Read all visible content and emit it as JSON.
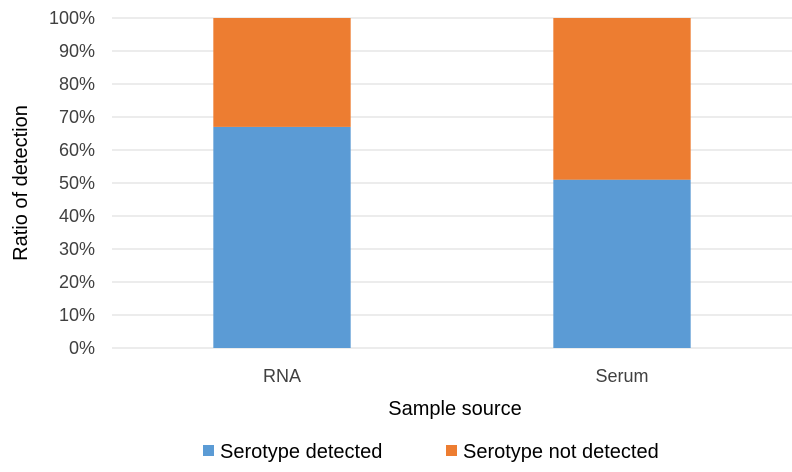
{
  "chart_data": {
    "type": "bar",
    "stacked": true,
    "categories": [
      "RNA",
      "Serum"
    ],
    "series": [
      {
        "name": "Serotype detected",
        "values": [
          67,
          51
        ],
        "color": "#5B9BD5"
      },
      {
        "name": "Serotype not detected",
        "values": [
          33,
          49
        ],
        "color": "#ED7D31"
      }
    ],
    "xlabel": "Sample source",
    "ylabel": "Ratio of detection",
    "ylim": [
      0,
      100
    ],
    "yticks": [
      "0%",
      "10%",
      "20%",
      "30%",
      "40%",
      "50%",
      "60%",
      "70%",
      "80%",
      "90%",
      "100%"
    ],
    "grid": true,
    "legend_position": "bottom"
  }
}
